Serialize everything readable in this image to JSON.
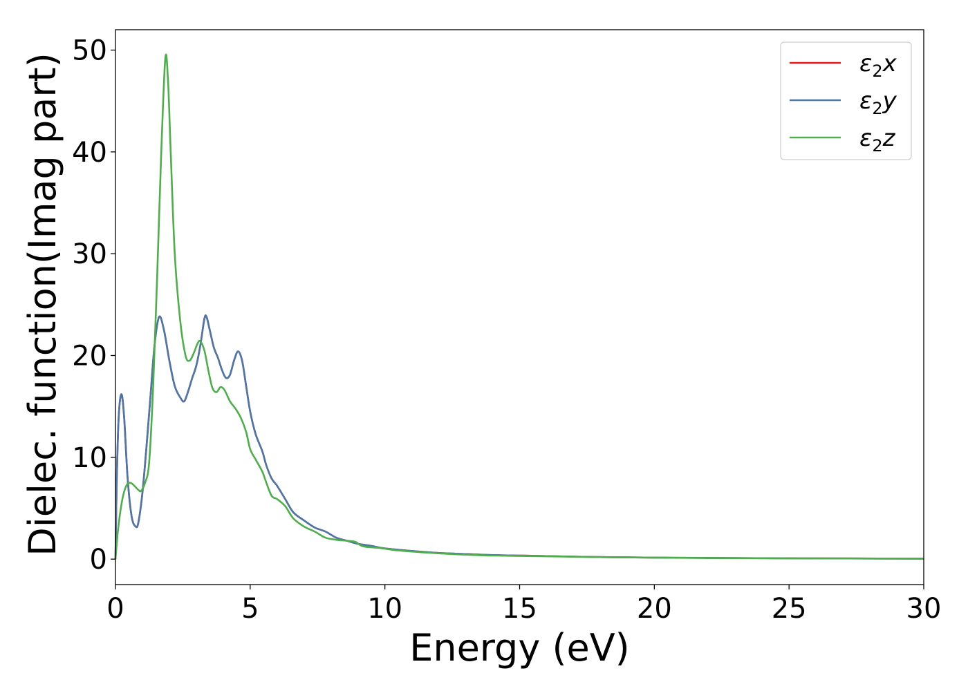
{
  "chart_data": {
    "type": "line",
    "title": "",
    "xlabel": "Energy (eV)",
    "ylabel": "Dielec. function(Imag part)",
    "xlim": [
      0,
      30
    ],
    "ylim": [
      -2.5,
      52
    ],
    "xticks": [
      0,
      5,
      10,
      15,
      20,
      25,
      30
    ],
    "yticks": [
      0,
      10,
      20,
      30,
      40,
      50
    ],
    "xtick_labels": [
      "0",
      "5",
      "10",
      "15",
      "20",
      "25",
      "30"
    ],
    "ytick_labels": [
      "0",
      "10",
      "20",
      "30",
      "40",
      "50"
    ],
    "grid": false,
    "legend_position": "top-right",
    "series": [
      {
        "name": "ε2x",
        "symbol": "ε",
        "sub": "2",
        "axis": "x",
        "color": "#e41a1c",
        "points": [
          [
            0,
            0
          ],
          [
            0.05,
            8
          ],
          [
            0.12,
            14
          ],
          [
            0.22,
            16.2
          ],
          [
            0.32,
            14
          ],
          [
            0.45,
            8
          ],
          [
            0.6,
            4.2
          ],
          [
            0.75,
            3.2
          ],
          [
            0.85,
            3.6
          ],
          [
            1.0,
            6.5
          ],
          [
            1.15,
            11
          ],
          [
            1.3,
            16
          ],
          [
            1.45,
            21
          ],
          [
            1.62,
            23.8
          ],
          [
            1.8,
            22.5
          ],
          [
            2.0,
            19.5
          ],
          [
            2.2,
            17
          ],
          [
            2.4,
            15.9
          ],
          [
            2.55,
            15.5
          ],
          [
            2.7,
            16.5
          ],
          [
            2.85,
            17.8
          ],
          [
            3.0,
            19
          ],
          [
            3.15,
            21
          ],
          [
            3.3,
            23.6
          ],
          [
            3.38,
            23.8
          ],
          [
            3.5,
            22.5
          ],
          [
            3.65,
            20.8
          ],
          [
            3.8,
            19.8
          ],
          [
            3.95,
            18.6
          ],
          [
            4.1,
            17.8
          ],
          [
            4.25,
            18.1
          ],
          [
            4.4,
            19.5
          ],
          [
            4.55,
            20.4
          ],
          [
            4.7,
            19.5
          ],
          [
            4.85,
            17
          ],
          [
            5.0,
            14.5
          ],
          [
            5.2,
            12.3
          ],
          [
            5.45,
            10.6
          ],
          [
            5.6,
            9.2
          ],
          [
            5.8,
            7.9
          ],
          [
            6.0,
            7.2
          ],
          [
            6.3,
            5.9
          ],
          [
            6.6,
            4.6
          ],
          [
            7.0,
            3.8
          ],
          [
            7.4,
            3.1
          ],
          [
            7.8,
            2.7
          ],
          [
            8.2,
            2.1
          ],
          [
            8.6,
            1.8
          ],
          [
            9.0,
            1.5
          ],
          [
            9.5,
            1.3
          ],
          [
            10,
            1.05
          ],
          [
            11,
            0.8
          ],
          [
            12,
            0.6
          ],
          [
            13,
            0.5
          ],
          [
            14,
            0.4
          ],
          [
            15,
            0.35
          ],
          [
            16,
            0.3
          ],
          [
            18,
            0.2
          ],
          [
            20,
            0.15
          ],
          [
            22,
            0.12
          ],
          [
            25,
            0.08
          ],
          [
            30,
            0.05
          ]
        ]
      },
      {
        "name": "ε2y",
        "symbol": "ε",
        "sub": "2",
        "axis": "y",
        "color": "#4a78ad",
        "points": [
          [
            0,
            0
          ],
          [
            0.05,
            8
          ],
          [
            0.12,
            14
          ],
          [
            0.22,
            16.2
          ],
          [
            0.32,
            14
          ],
          [
            0.45,
            8
          ],
          [
            0.6,
            4.2
          ],
          [
            0.75,
            3.2
          ],
          [
            0.85,
            3.6
          ],
          [
            1.0,
            6.5
          ],
          [
            1.15,
            11
          ],
          [
            1.3,
            16
          ],
          [
            1.45,
            21
          ],
          [
            1.62,
            23.8
          ],
          [
            1.8,
            22.5
          ],
          [
            2.0,
            19.5
          ],
          [
            2.2,
            17
          ],
          [
            2.4,
            15.9
          ],
          [
            2.55,
            15.5
          ],
          [
            2.7,
            16.5
          ],
          [
            2.85,
            17.8
          ],
          [
            3.0,
            19
          ],
          [
            3.15,
            21
          ],
          [
            3.3,
            23.6
          ],
          [
            3.38,
            23.8
          ],
          [
            3.5,
            22.5
          ],
          [
            3.65,
            20.8
          ],
          [
            3.8,
            19.8
          ],
          [
            3.95,
            18.6
          ],
          [
            4.1,
            17.8
          ],
          [
            4.25,
            18.1
          ],
          [
            4.4,
            19.5
          ],
          [
            4.55,
            20.4
          ],
          [
            4.7,
            19.5
          ],
          [
            4.85,
            17
          ],
          [
            5.0,
            14.5
          ],
          [
            5.2,
            12.3
          ],
          [
            5.45,
            10.6
          ],
          [
            5.6,
            9.2
          ],
          [
            5.8,
            7.9
          ],
          [
            6.0,
            7.2
          ],
          [
            6.3,
            5.9
          ],
          [
            6.6,
            4.6
          ],
          [
            7.0,
            3.8
          ],
          [
            7.4,
            3.1
          ],
          [
            7.8,
            2.7
          ],
          [
            8.2,
            2.1
          ],
          [
            8.6,
            1.8
          ],
          [
            9.0,
            1.5
          ],
          [
            9.5,
            1.3
          ],
          [
            10,
            1.05
          ],
          [
            11,
            0.8
          ],
          [
            12,
            0.6
          ],
          [
            13,
            0.5
          ],
          [
            14,
            0.4
          ],
          [
            15,
            0.35
          ],
          [
            16,
            0.3
          ],
          [
            18,
            0.2
          ],
          [
            20,
            0.15
          ],
          [
            22,
            0.12
          ],
          [
            25,
            0.08
          ],
          [
            30,
            0.05
          ]
        ]
      },
      {
        "name": "ε2z",
        "symbol": "ε",
        "sub": "2",
        "axis": "z",
        "color": "#4daf4a",
        "points": [
          [
            0,
            0
          ],
          [
            0.1,
            3
          ],
          [
            0.25,
            5.8
          ],
          [
            0.4,
            7.2
          ],
          [
            0.55,
            7.5
          ],
          [
            0.7,
            7.2
          ],
          [
            0.85,
            6.8
          ],
          [
            0.95,
            6.7
          ],
          [
            1.1,
            7.5
          ],
          [
            1.25,
            9.5
          ],
          [
            1.4,
            17
          ],
          [
            1.55,
            28
          ],
          [
            1.7,
            40
          ],
          [
            1.85,
            49.2
          ],
          [
            1.95,
            47
          ],
          [
            2.05,
            40
          ],
          [
            2.2,
            30
          ],
          [
            2.4,
            23.5
          ],
          [
            2.6,
            20
          ],
          [
            2.75,
            19.5
          ],
          [
            2.9,
            20.2
          ],
          [
            3.05,
            21.2
          ],
          [
            3.15,
            21.4
          ],
          [
            3.3,
            20.5
          ],
          [
            3.45,
            18.5
          ],
          [
            3.6,
            16.8
          ],
          [
            3.75,
            16.4
          ],
          [
            3.9,
            16.9
          ],
          [
            4.05,
            16.6
          ],
          [
            4.25,
            15.5
          ],
          [
            4.45,
            14.8
          ],
          [
            4.65,
            13.9
          ],
          [
            4.85,
            12.5
          ],
          [
            5.0,
            10.8
          ],
          [
            5.2,
            9.8
          ],
          [
            5.45,
            8.6
          ],
          [
            5.6,
            7.5
          ],
          [
            5.8,
            6.2
          ],
          [
            6.0,
            5.9
          ],
          [
            6.3,
            5.2
          ],
          [
            6.6,
            4
          ],
          [
            7.0,
            3.2
          ],
          [
            7.4,
            2.7
          ],
          [
            7.8,
            2.1
          ],
          [
            8.2,
            1.9
          ],
          [
            8.6,
            1.8
          ],
          [
            8.9,
            1.7
          ],
          [
            9.2,
            1.25
          ],
          [
            9.8,
            1.1
          ],
          [
            10.5,
            0.85
          ],
          [
            11.5,
            0.65
          ],
          [
            12.5,
            0.5
          ],
          [
            14,
            0.35
          ],
          [
            16,
            0.28
          ],
          [
            18,
            0.2
          ],
          [
            20,
            0.15
          ],
          [
            22,
            0.11
          ],
          [
            25,
            0.08
          ],
          [
            30,
            0.05
          ]
        ]
      }
    ]
  }
}
